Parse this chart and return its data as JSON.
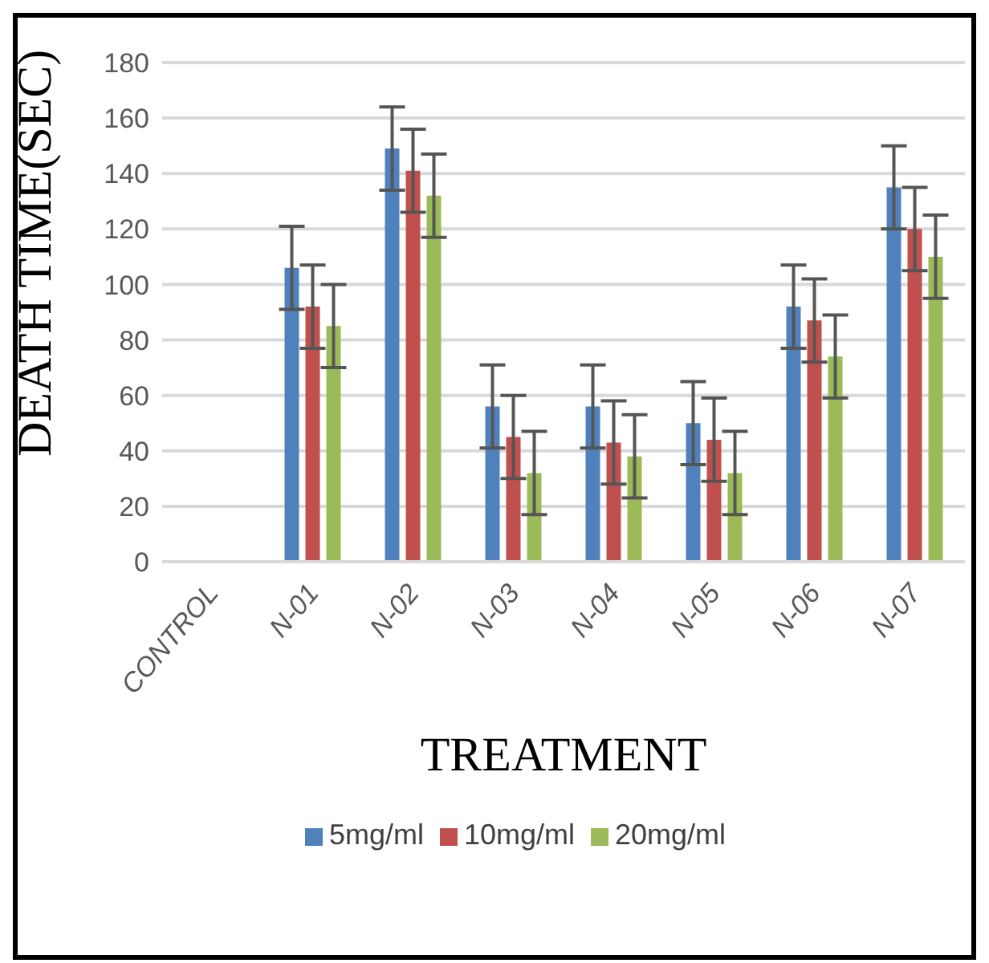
{
  "chart_data": {
    "type": "bar",
    "xlabel": "TREATMENT",
    "ylabel": "DEATH TIME(SEC)",
    "categories": [
      "CONTROL",
      "N-01",
      "N-02",
      "N-03",
      "N-04",
      "N-05",
      "N-06",
      "N-07"
    ],
    "series": [
      {
        "name": "5mg/ml",
        "color": "#4f81bd",
        "values": [
          null,
          106,
          149,
          56,
          56,
          50,
          92,
          135
        ],
        "errors": [
          null,
          15,
          15,
          15,
          15,
          15,
          15,
          15
        ]
      },
      {
        "name": "10mg/ml",
        "color": "#c0504d",
        "values": [
          null,
          92,
          141,
          45,
          43,
          44,
          87,
          120
        ],
        "errors": [
          null,
          15,
          15,
          15,
          15,
          15,
          15,
          15
        ]
      },
      {
        "name": "20mg/ml",
        "color": "#9bbb59",
        "values": [
          null,
          85,
          132,
          32,
          38,
          32,
          74,
          110
        ],
        "errors": [
          null,
          15,
          15,
          15,
          15,
          15,
          15,
          15
        ]
      }
    ],
    "ylim": [
      0,
      180
    ],
    "yticks": [
      0,
      20,
      40,
      60,
      80,
      100,
      120,
      140,
      160,
      180
    ],
    "grid": "y",
    "legend": "bottom"
  }
}
